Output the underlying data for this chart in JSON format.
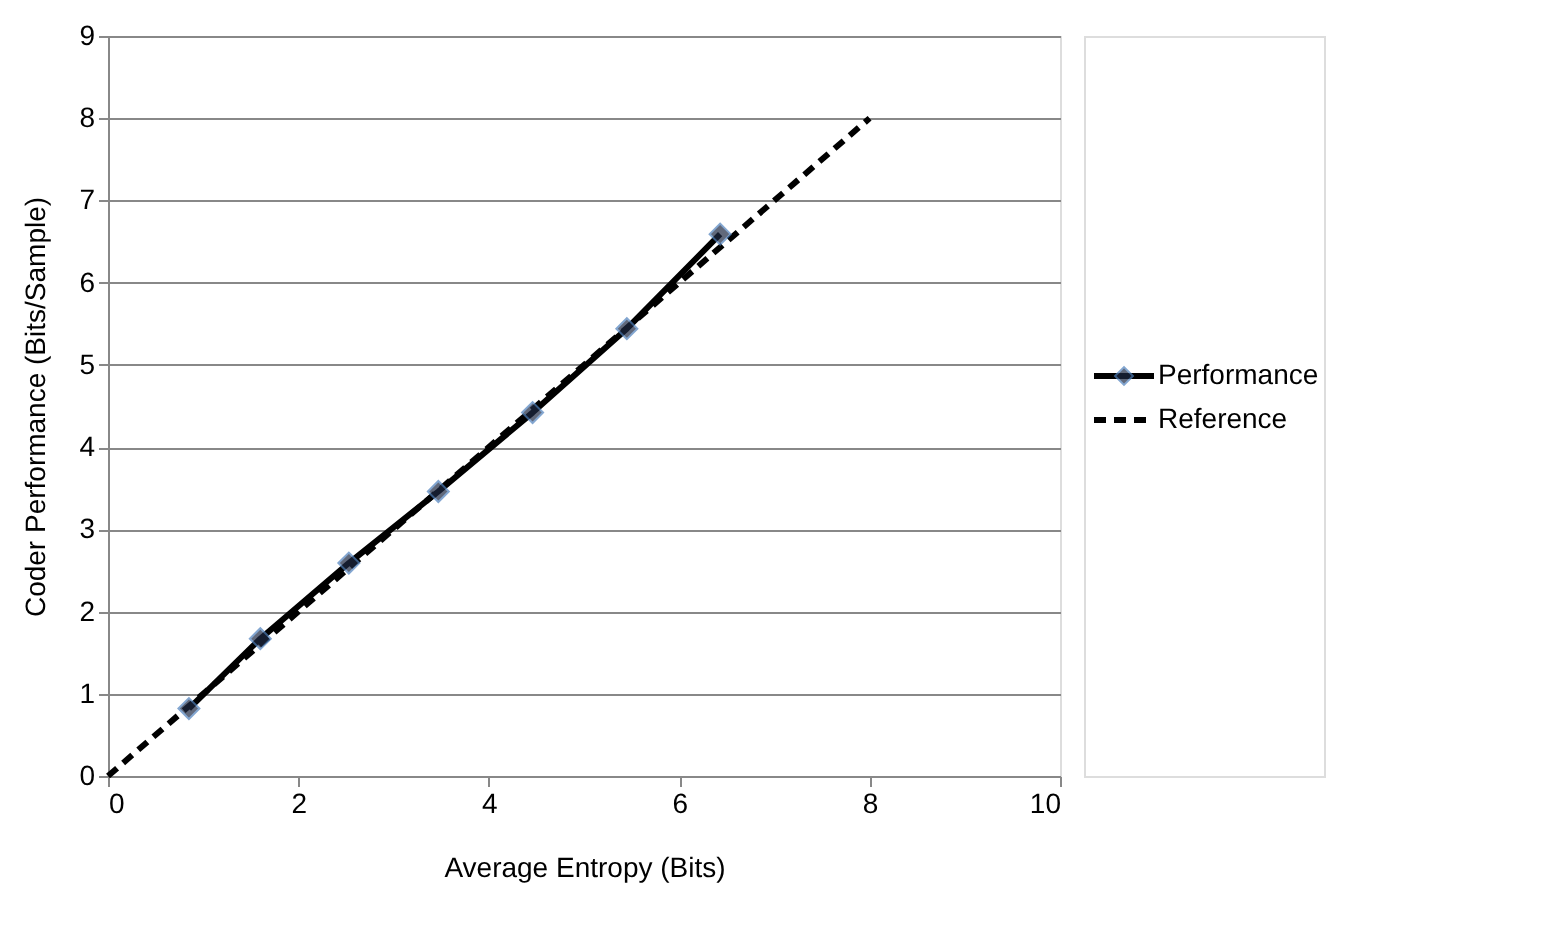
{
  "chart_data": {
    "type": "line",
    "xlabel": "Average Entropy (Bits)",
    "ylabel": "Coder Performance (Bits/Sample)",
    "series": [
      {
        "name": "Performance",
        "color": "#000000",
        "marker": "diamond",
        "line_style": "solid",
        "x": [
          0.85,
          1.6,
          2.53,
          3.47,
          4.46,
          5.45,
          6.43
        ],
        "values": [
          0.82,
          1.67,
          2.59,
          3.46,
          4.42,
          5.44,
          6.59
        ]
      },
      {
        "name": "Reference",
        "color": "#000000",
        "marker": "none",
        "line_style": "dashed",
        "x": [
          0,
          8
        ],
        "values": [
          0,
          8
        ]
      }
    ],
    "xlim": [
      0,
      10
    ],
    "xticks": [
      0,
      2,
      4,
      6,
      8,
      10
    ],
    "ylim": [
      0,
      9
    ],
    "yticks": [
      0,
      1,
      2,
      3,
      4,
      5,
      6,
      7,
      8,
      9
    ],
    "grid": "y",
    "legend": "right"
  }
}
